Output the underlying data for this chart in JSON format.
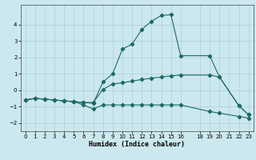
{
  "xlabel": "Humidex (Indice chaleur)",
  "background_color": "#cce8ef",
  "grid_color": "#b0d4dc",
  "line_color": "#1e6b60",
  "xlim": [
    -0.5,
    23.5
  ],
  "ylim": [
    -2.5,
    5.2
  ],
  "yticks": [
    -2,
    -1,
    0,
    1,
    2,
    3,
    4
  ],
  "xticks": [
    0,
    1,
    2,
    3,
    4,
    5,
    6,
    7,
    8,
    9,
    10,
    11,
    12,
    13,
    14,
    15,
    16,
    18,
    19,
    20,
    21,
    22,
    23
  ],
  "line_upper_x": [
    0,
    1,
    2,
    3,
    4,
    5,
    6,
    7,
    8,
    9,
    10,
    11,
    12,
    13,
    14,
    15,
    16,
    19,
    20,
    22,
    23
  ],
  "line_upper_y": [
    -0.6,
    -0.5,
    -0.55,
    -0.6,
    -0.65,
    -0.7,
    -0.75,
    -0.8,
    0.5,
    1.0,
    2.5,
    2.8,
    3.7,
    4.2,
    4.55,
    4.6,
    2.1,
    2.1,
    0.8,
    -0.95,
    -1.5
  ],
  "line_mid_x": [
    0,
    1,
    2,
    3,
    4,
    5,
    6,
    7,
    8,
    9,
    10,
    11,
    12,
    13,
    14,
    15,
    16,
    19,
    20,
    22,
    23
  ],
  "line_mid_y": [
    -0.6,
    -0.5,
    -0.55,
    -0.6,
    -0.65,
    -0.7,
    -0.75,
    -0.75,
    0.05,
    0.38,
    0.45,
    0.55,
    0.65,
    0.73,
    0.8,
    0.87,
    0.92,
    0.92,
    0.8,
    -0.95,
    -1.5
  ],
  "line_lower_x": [
    0,
    1,
    2,
    3,
    4,
    5,
    6,
    7,
    8,
    9,
    10,
    11,
    12,
    13,
    14,
    15,
    16,
    19,
    20,
    22,
    23
  ],
  "line_lower_y": [
    -0.6,
    -0.5,
    -0.55,
    -0.6,
    -0.65,
    -0.7,
    -0.9,
    -1.15,
    -0.9,
    -0.9,
    -0.9,
    -0.9,
    -0.9,
    -0.9,
    -0.9,
    -0.9,
    -0.9,
    -1.3,
    -1.4,
    -1.6,
    -1.7
  ]
}
